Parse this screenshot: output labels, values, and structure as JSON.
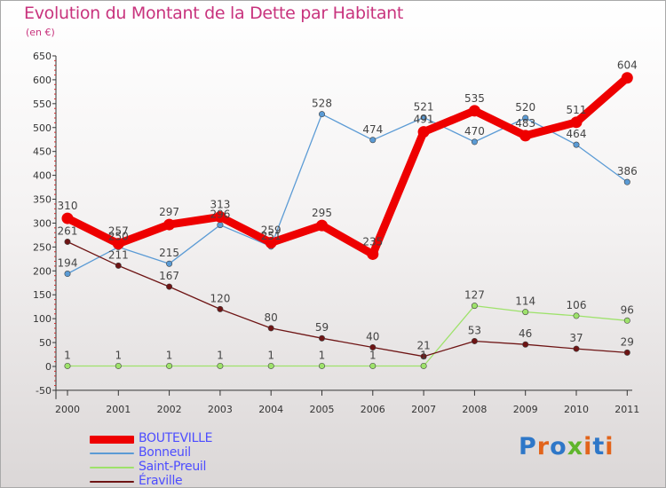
{
  "title": "Evolution du Montant de la Dette par Habitant",
  "unit": "(en €)",
  "brand": {
    "text": "Proxiti",
    "colors": [
      "#2e77c8",
      "#e2641b",
      "#2e77c8",
      "#5fb52c",
      "#e2641b",
      "#2e77c8",
      "#e2641b"
    ]
  },
  "chart_data": {
    "type": "line",
    "title": "Evolution du Montant de la Dette par Habitant",
    "ylabel": "(en €)",
    "xlabel": "",
    "ylim": [
      -50,
      650
    ],
    "y_ticks": [
      -50,
      0,
      50,
      100,
      150,
      200,
      250,
      300,
      350,
      400,
      450,
      500,
      550,
      600,
      650
    ],
    "x": [
      "2000",
      "2001",
      "2002",
      "2003",
      "2004",
      "2005",
      "2006",
      "2007",
      "2008",
      "2009",
      "2010",
      "2011"
    ],
    "grid": false,
    "legend_position": "bottom-left",
    "series": [
      {
        "name": "BOUTEVILLE",
        "color": "#ee0000",
        "emphasis": true,
        "values": [
          310,
          257,
          297,
          313,
          259,
          295,
          235,
          491,
          535,
          483,
          511,
          604
        ]
      },
      {
        "name": "Bonneuil",
        "color": "#5b9bd5",
        "values": [
          194,
          250,
          215,
          296,
          251,
          528,
          474,
          521,
          470,
          520,
          464,
          386
        ]
      },
      {
        "name": "Saint-Preuil",
        "color": "#9ee26b",
        "values": [
          1,
          1,
          1,
          1,
          1,
          1,
          1,
          1,
          127,
          114,
          106,
          96
        ]
      },
      {
        "name": "Éraville",
        "color": "#6e1414",
        "values": [
          261,
          211,
          167,
          120,
          80,
          59,
          40,
          21,
          53,
          46,
          37,
          29
        ]
      }
    ]
  }
}
